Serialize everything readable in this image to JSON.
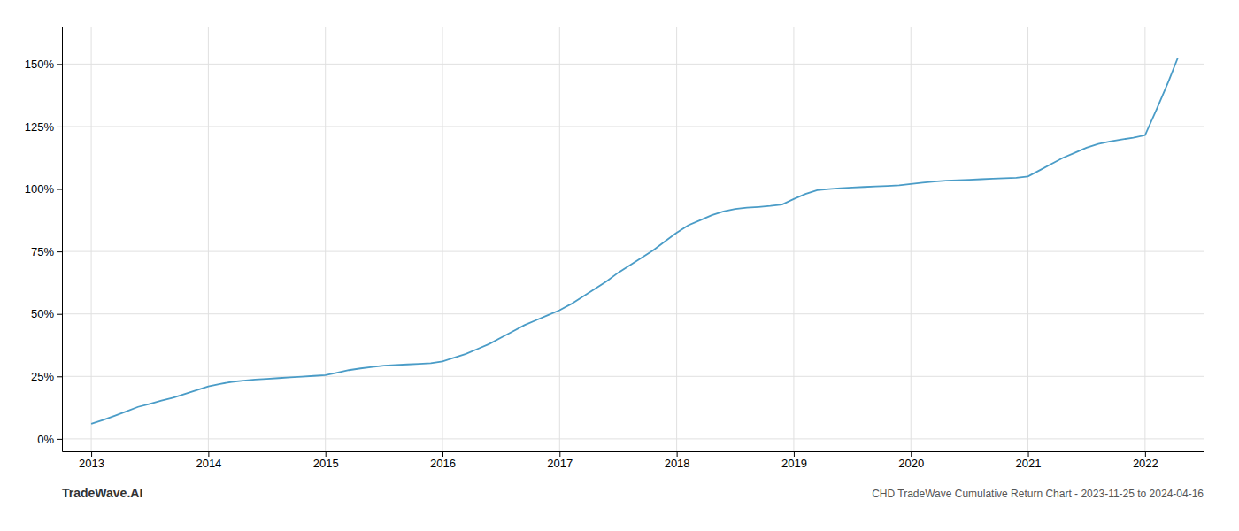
{
  "chart_data": {
    "type": "line",
    "annotations": [
      "TradeWave.AI",
      "CHD TradeWave Cumulative Return Chart - 2023-11-25 to 2024-04-16"
    ],
    "color": "#4a9cc7",
    "grid": true,
    "x": [
      2013.0,
      2013.1,
      2013.2,
      2013.3,
      2013.4,
      2013.5,
      2013.6,
      2013.7,
      2013.8,
      2013.9,
      2014.0,
      2014.1,
      2014.2,
      2014.3,
      2014.4,
      2014.5,
      2014.6,
      2014.7,
      2014.8,
      2014.9,
      2015.0,
      2015.1,
      2015.2,
      2015.3,
      2015.4,
      2015.5,
      2015.6,
      2015.7,
      2015.8,
      2015.9,
      2016.0,
      2016.1,
      2016.2,
      2016.3,
      2016.4,
      2016.5,
      2016.6,
      2016.7,
      2016.8,
      2016.9,
      2017.0,
      2017.1,
      2017.2,
      2017.3,
      2017.4,
      2017.5,
      2017.6,
      2017.7,
      2017.8,
      2017.9,
      2018.0,
      2018.1,
      2018.2,
      2018.3,
      2018.4,
      2018.5,
      2018.6,
      2018.7,
      2018.8,
      2018.9,
      2019.0,
      2019.1,
      2019.2,
      2019.3,
      2019.4,
      2019.5,
      2019.6,
      2019.7,
      2019.8,
      2019.9,
      2020.0,
      2020.1,
      2020.2,
      2020.3,
      2020.4,
      2020.5,
      2020.6,
      2020.7,
      2020.8,
      2020.9,
      2021.0,
      2021.1,
      2021.2,
      2021.3,
      2021.4,
      2021.5,
      2021.6,
      2021.7,
      2021.8,
      2021.9,
      2022.0,
      2022.1,
      2022.2,
      2022.28
    ],
    "values": [
      6.0,
      7.5,
      9.2,
      11.0,
      12.8,
      14.0,
      15.3,
      16.5,
      18.0,
      19.5,
      21.0,
      22.0,
      22.8,
      23.3,
      23.7,
      24.0,
      24.3,
      24.6,
      24.9,
      25.2,
      25.5,
      26.5,
      27.5,
      28.2,
      28.8,
      29.3,
      29.6,
      29.8,
      30.0,
      30.3,
      31.0,
      32.5,
      34.0,
      36.0,
      38.0,
      40.5,
      43.0,
      45.5,
      47.5,
      49.5,
      51.5,
      54.0,
      57.0,
      60.0,
      63.0,
      66.5,
      69.5,
      72.5,
      75.5,
      79.0,
      82.5,
      85.5,
      87.5,
      89.5,
      91.0,
      92.0,
      92.5,
      92.8,
      93.2,
      93.8,
      96.0,
      98.0,
      99.5,
      100.0,
      100.3,
      100.6,
      100.8,
      101.0,
      101.2,
      101.5,
      102.0,
      102.5,
      103.0,
      103.3,
      103.5,
      103.7,
      103.9,
      104.1,
      104.3,
      104.5,
      105.0,
      107.5,
      110.0,
      112.5,
      114.5,
      116.5,
      118.0,
      119.0,
      119.8,
      120.5,
      121.5,
      132.0,
      143.0,
      152.5
    ],
    "xlim": [
      2012.75,
      2022.5
    ],
    "ylim": [
      -5,
      165
    ],
    "xticks": [
      2013,
      2014,
      2015,
      2016,
      2017,
      2018,
      2019,
      2020,
      2021,
      2022
    ],
    "yticks": [
      {
        "value": 0,
        "label": "0%"
      },
      {
        "value": 25,
        "label": "25%"
      },
      {
        "value": 50,
        "label": "50%"
      },
      {
        "value": 75,
        "label": "75%"
      },
      {
        "value": 100,
        "label": "100%"
      },
      {
        "value": 125,
        "label": "125%"
      },
      {
        "value": 150,
        "label": "150%"
      }
    ]
  }
}
